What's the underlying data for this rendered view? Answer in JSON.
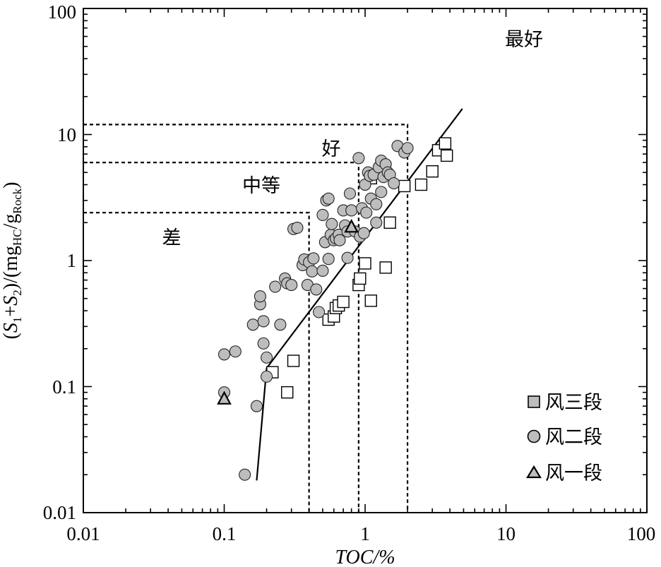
{
  "chart_data": {
    "type": "scatter",
    "xlabel": "TOC/%",
    "ylabel_parts": {
      "open": "(",
      "s": "S",
      "sub1": "1",
      "plus": "+",
      "sub2": "2",
      "close_slash": ")/(mg",
      "sub_hc": "HC",
      "slash_g": "/g",
      "sub_rock": "Rock",
      "end": ")"
    },
    "xscale": "log",
    "yscale": "log",
    "xlim": [
      0.01,
      100
    ],
    "ylim": [
      0.01,
      100
    ],
    "x_ticks": [
      "0.01",
      "0.1",
      "1",
      "10",
      "100"
    ],
    "y_ticks": [
      "0.01",
      "0.1",
      "1",
      "10",
      "100"
    ],
    "zones": [
      {
        "label": "差",
        "toc_max": 0.4,
        "s_max": 2.4
      },
      {
        "label": "中等",
        "toc_max": 0.9,
        "s_max": 6.0
      },
      {
        "label": "好",
        "toc_max": 2.0,
        "s_max": 12.0
      },
      {
        "label": "最好"
      }
    ],
    "trend_line": [
      [
        0.17,
        0.018
      ],
      [
        0.2,
        0.14
      ],
      [
        4.9,
        16.0
      ]
    ],
    "legend_position": "bottom-right",
    "series": [
      {
        "name": "风三段",
        "marker": "square",
        "color": "#ffffff",
        "legend_color": "#bdbdbd",
        "points": [
          [
            0.22,
            0.13
          ],
          [
            0.28,
            0.09
          ],
          [
            0.31,
            0.16
          ],
          [
            0.55,
            0.34
          ],
          [
            0.6,
            0.36
          ],
          [
            0.62,
            0.42
          ],
          [
            0.65,
            0.44
          ],
          [
            0.7,
            0.47
          ],
          [
            0.9,
            0.64
          ],
          [
            0.92,
            0.72
          ],
          [
            1.0,
            0.95
          ],
          [
            1.1,
            0.48
          ],
          [
            1.4,
            0.88
          ],
          [
            1.5,
            2.0
          ],
          [
            1.1,
            4.5
          ],
          [
            1.9,
            3.9
          ],
          [
            2.5,
            4.0
          ],
          [
            3.0,
            5.1
          ],
          [
            3.3,
            7.5
          ],
          [
            3.7,
            8.5
          ],
          [
            3.8,
            6.8
          ]
        ]
      },
      {
        "name": "风二段",
        "marker": "circle",
        "color": "#bdbdbd",
        "legend_color": "#bdbdbd",
        "points": [
          [
            0.1,
            0.18
          ],
          [
            0.12,
            0.19
          ],
          [
            0.1,
            0.09
          ],
          [
            0.14,
            0.02
          ],
          [
            0.16,
            0.31
          ],
          [
            0.17,
            0.07
          ],
          [
            0.18,
            0.45
          ],
          [
            0.18,
            0.52
          ],
          [
            0.19,
            0.22
          ],
          [
            0.19,
            0.33
          ],
          [
            0.2,
            0.17
          ],
          [
            0.2,
            0.12
          ],
          [
            0.23,
            0.62
          ],
          [
            0.25,
            0.31
          ],
          [
            0.27,
            0.72
          ],
          [
            0.28,
            0.66
          ],
          [
            0.3,
            0.64
          ],
          [
            0.31,
            1.78
          ],
          [
            0.33,
            1.82
          ],
          [
            0.36,
            0.92
          ],
          [
            0.37,
            1.02
          ],
          [
            0.39,
            0.64
          ],
          [
            0.4,
            0.97
          ],
          [
            0.42,
            0.82
          ],
          [
            0.43,
            1.04
          ],
          [
            0.45,
            0.59
          ],
          [
            0.47,
            0.39
          ],
          [
            0.5,
            0.83
          ],
          [
            0.5,
            2.3
          ],
          [
            0.52,
            1.4
          ],
          [
            0.53,
            3.0
          ],
          [
            0.55,
            3.1
          ],
          [
            0.55,
            1.03
          ],
          [
            0.57,
            1.6
          ],
          [
            0.58,
            1.95
          ],
          [
            0.6,
            1.45
          ],
          [
            0.62,
            1.5
          ],
          [
            0.65,
            1.6
          ],
          [
            0.66,
            1.45
          ],
          [
            0.7,
            2.5
          ],
          [
            0.72,
            1.9
          ],
          [
            0.75,
            1.7
          ],
          [
            0.78,
            3.4
          ],
          [
            0.8,
            2.5
          ],
          [
            0.85,
            1.7
          ],
          [
            0.9,
            6.5
          ],
          [
            0.92,
            1.55
          ],
          [
            0.95,
            2.6
          ],
          [
            0.98,
            1.65
          ],
          [
            1.0,
            4.0
          ],
          [
            1.02,
            2.4
          ],
          [
            1.05,
            5.0
          ],
          [
            1.08,
            4.7
          ],
          [
            1.1,
            3.1
          ],
          [
            1.15,
            4.8
          ],
          [
            1.2,
            2.8
          ],
          [
            1.2,
            2.0
          ],
          [
            1.25,
            5.5
          ],
          [
            1.3,
            6.2
          ],
          [
            1.3,
            3.5
          ],
          [
            1.35,
            4.6
          ],
          [
            1.4,
            5.8
          ],
          [
            1.45,
            5.0
          ],
          [
            1.5,
            4.8
          ],
          [
            1.6,
            4.1
          ],
          [
            1.7,
            8.1
          ],
          [
            1.9,
            7.2
          ],
          [
            2.0,
            7.8
          ],
          [
            0.75,
            1.05
          ]
        ]
      },
      {
        "name": "风一段",
        "marker": "triangle",
        "color": "#bdbdbd",
        "legend_color": "#bdbdbd",
        "points": [
          [
            0.1,
            0.08
          ],
          [
            0.8,
            1.85
          ]
        ]
      }
    ]
  }
}
